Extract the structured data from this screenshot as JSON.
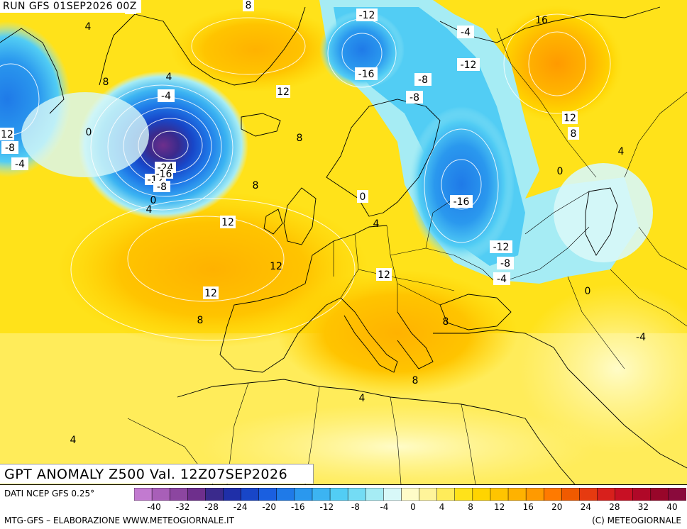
{
  "header": {
    "run": "RUN GFS 01SEP2026 00Z"
  },
  "title": {
    "text": "GPT ANOMALY Z500 Val. 12Z07SEP2026"
  },
  "footer": {
    "source": "DATI NCEP GFS 0.25°",
    "credit": "MTG-GFS – ELABORAZIONE WWW.METEOGIORNALE.IT",
    "copyright": "(C) METEOGIORNALE"
  },
  "colorbar": {
    "ticks": [
      "-40",
      "-32",
      "-28",
      "-24",
      "-20",
      "-16",
      "-12",
      "-8",
      "-4",
      "0",
      "4",
      "8",
      "12",
      "16",
      "20",
      "24",
      "28",
      "32",
      "40"
    ],
    "colors": [
      "#c27ad0",
      "#a85fb8",
      "#8c46a0",
      "#6e2f8c",
      "#3a2a8c",
      "#1f2fa8",
      "#1846c8",
      "#1a5fe0",
      "#1f7ae8",
      "#2a98ee",
      "#3cb4f2",
      "#52cdf4",
      "#74dcf4",
      "#a6ecf4",
      "#d8f8f8",
      "#fffcc8",
      "#fff49a",
      "#ffec5a",
      "#ffe21a",
      "#ffd400",
      "#ffc400",
      "#ffb200",
      "#ff9a00",
      "#ff7a00",
      "#f05a00",
      "#e63a10",
      "#d8201c",
      "#c81024",
      "#b00828",
      "#98062a",
      "#8a0a3c"
    ]
  },
  "contour_labels": [
    "0",
    "4",
    "8",
    "-4",
    "8",
    "12",
    "8",
    "-4",
    "4",
    "12",
    "0",
    "-8",
    "-4",
    "-24",
    "-12",
    "-16",
    "-8",
    "0",
    "4",
    "8",
    "12",
    "12",
    "8",
    "-12",
    "-16",
    "-8",
    "-8",
    "-12",
    "-16",
    "-4",
    "16",
    "12",
    "8",
    "4",
    "0",
    "4",
    "12",
    "0",
    "-12",
    "-8",
    "-4",
    "0",
    "12",
    "8",
    "8",
    "4",
    "4"
  ]
}
